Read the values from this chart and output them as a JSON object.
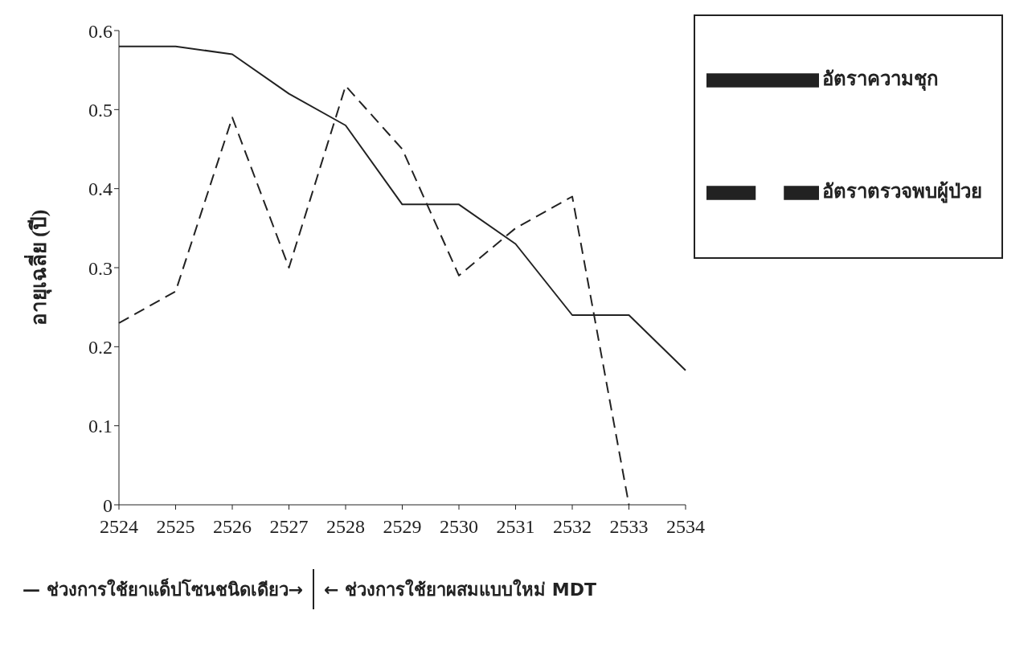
{
  "chart_data": {
    "type": "line",
    "ylabel": "อายุเฉลี่ย (ปี)",
    "categories": [
      "2524",
      "2525",
      "2526",
      "2527",
      "2528",
      "2529",
      "2530",
      "2531",
      "2532",
      "2533",
      "2534"
    ],
    "ylim": [
      0,
      0.6
    ],
    "yticks": [
      0,
      0.1,
      0.2,
      0.3,
      0.4,
      0.5,
      0.6
    ],
    "grid": false,
    "legend": "top right",
    "marker": "none",
    "series": [
      {
        "name": "อัตราความชุก",
        "color": "#222222",
        "line_style": "solid",
        "values": [
          0.58,
          0.58,
          0.57,
          0.52,
          0.48,
          0.38,
          0.38,
          0.33,
          0.24,
          0.24,
          0.17
        ]
      },
      {
        "name": "อัตราตรวจพบผู้ป่วย",
        "color": "#222222",
        "line_style": "dashed",
        "values": [
          0.23,
          0.27,
          0.49,
          0.3,
          0.53,
          0.45,
          0.29,
          0.35,
          0.39,
          0,
          null
        ]
      }
    ],
    "annotations": [
      "— ช่วงการใช้ยาแด็ปโซนชนิดเดียว→",
      "← ช่วงการใช้ยาผสมแบบใหม่ MDT"
    ]
  }
}
